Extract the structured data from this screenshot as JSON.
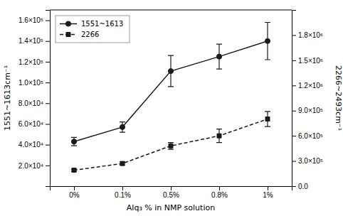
{
  "chart_data": {
    "type": "line",
    "xlabel": "Alq₃ % in NMP solution",
    "ylabel": "1551~1613cm⁻¹",
    "y2label": "2266~2493cm⁻¹",
    "categories": [
      "0%",
      "0.1%",
      "0.5%",
      "0.8%",
      "1%"
    ],
    "series": [
      {
        "name": "1551~1613",
        "color": "#1a1a1a",
        "marker": "circle",
        "line_style": "solid",
        "values": [
          43000,
          57000,
          111000,
          125000,
          140000
        ],
        "errors": [
          4000,
          5000,
          15000,
          12000,
          18000
        ]
      },
      {
        "name": "2266",
        "color": "#1a1a1a",
        "marker": "square",
        "line_style": "dashed",
        "axis": "y2",
        "values": [
          190000,
          270000,
          480000,
          600000,
          800000
        ],
        "errors": [
          15000,
          20000,
          40000,
          80000,
          90000
        ]
      }
    ],
    "ylim": [
      0,
      170000
    ],
    "yticks": [
      {
        "value": 20000,
        "label": "2.0×10⁴"
      },
      {
        "value": 40000,
        "label": "4.0×10⁴"
      },
      {
        "value": 60000,
        "label": "6.0×10⁴"
      },
      {
        "value": 80000,
        "label": "8.0×10⁴"
      },
      {
        "value": 100000,
        "label": "1.0×10⁵"
      },
      {
        "value": 120000,
        "label": "1.2×10⁵"
      },
      {
        "value": 140000,
        "label": "1.4×10⁵"
      },
      {
        "value": 160000,
        "label": "1.6×10⁵"
      }
    ],
    "y2lim": [
      0,
      2100000
    ],
    "y2ticks": [
      {
        "value": 0,
        "label": "0.0"
      },
      {
        "value": 300000,
        "label": "3.0×10⁵"
      },
      {
        "value": 600000,
        "label": "6.0×10⁵"
      },
      {
        "value": 900000,
        "label": "9.0×10⁵"
      },
      {
        "value": 1200000,
        "label": "1.2×10⁶"
      },
      {
        "value": 1500000,
        "label": "1.5×10⁶"
      },
      {
        "value": 1800000,
        "label": "1.8×10⁶"
      }
    ],
    "legend": "upper left",
    "grid": false
  }
}
